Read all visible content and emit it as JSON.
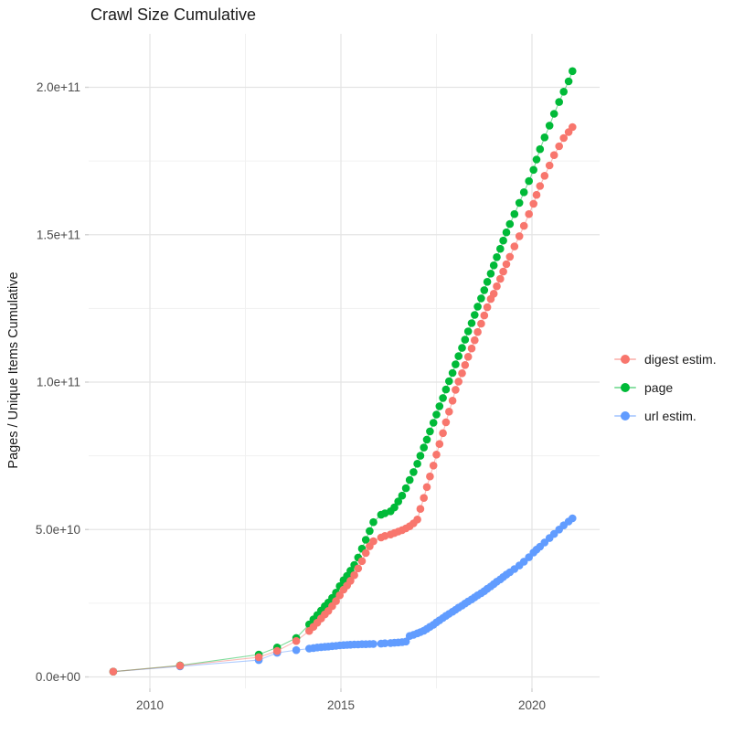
{
  "chart_data": {
    "type": "scatter",
    "title": "Crawl Size Cumulative",
    "xlabel": "",
    "ylabel": "Pages / Unique Items Cumulative",
    "value_unit": "billions (1e9) of pages / unique items",
    "axes": {
      "x": {
        "ticks": [
          {
            "value": 2010,
            "label": "2010"
          },
          {
            "value": 2015,
            "label": "2015"
          },
          {
            "value": 2020,
            "label": "2020"
          }
        ],
        "minor": [
          2012.5,
          2017.5
        ],
        "range": [
          2008.45,
          2021.75
        ]
      },
      "y": {
        "ticks": [
          {
            "value": 0,
            "label": "0.0e+00"
          },
          {
            "value": 50,
            "label": "5.0e+10"
          },
          {
            "value": 100,
            "label": "1.0e+11"
          },
          {
            "value": 150,
            "label": "1.5e+11"
          },
          {
            "value": 200,
            "label": "2.0e+11"
          }
        ],
        "minor": [
          25,
          75,
          125,
          175
        ],
        "range": [
          -4,
          218
        ]
      },
      "grid": "on"
    },
    "x": [
      2009.04,
      2010.79,
      2012.85,
      2013.33,
      2013.83,
      2014.17,
      2014.28,
      2014.38,
      2014.48,
      2014.58,
      2014.67,
      2014.77,
      2014.87,
      2014.97,
      2015.07,
      2015.16,
      2015.25,
      2015.35,
      2015.45,
      2015.55,
      2015.65,
      2015.75,
      2015.85,
      2016.05,
      2016.15,
      2016.3,
      2016.4,
      2016.5,
      2016.6,
      2016.7,
      2016.8,
      2016.9,
      2017.0,
      2017.08,
      2017.17,
      2017.25,
      2017.33,
      2017.42,
      2017.5,
      2017.58,
      2017.67,
      2017.75,
      2017.83,
      2017.92,
      2018.0,
      2018.08,
      2018.17,
      2018.25,
      2018.33,
      2018.42,
      2018.5,
      2018.58,
      2018.67,
      2018.75,
      2018.83,
      2018.92,
      2019.0,
      2019.08,
      2019.17,
      2019.25,
      2019.33,
      2019.42,
      2019.54,
      2019.67,
      2019.79,
      2019.92,
      2020.04,
      2020.12,
      2020.21,
      2020.33,
      2020.46,
      2020.58,
      2020.71,
      2020.83,
      2020.96,
      2021.06
    ],
    "series": [
      {
        "name": "digest estim.",
        "color": "#F8766D",
        "values": [
          1.8,
          3.8,
          6.7,
          8.8,
          12.2,
          15.6,
          17.0,
          18.4,
          19.8,
          21.2,
          22.4,
          24.0,
          25.7,
          27.7,
          29.6,
          31.0,
          32.6,
          34.5,
          36.8,
          39.3,
          42.0,
          44.3,
          46.0,
          47.3,
          47.8,
          48.3,
          48.8,
          49.3,
          49.8,
          50.4,
          51.1,
          52.1,
          53.4,
          57.0,
          60.7,
          64.4,
          68.0,
          71.7,
          75.4,
          79.0,
          82.7,
          86.4,
          90.0,
          93.7,
          97.4,
          100.2,
          103.0,
          105.8,
          108.6,
          111.4,
          114.2,
          117.0,
          119.8,
          122.6,
          125.4,
          128.2,
          130.0,
          132.5,
          135.0,
          137.5,
          140.0,
          142.5,
          146.0,
          149.5,
          153.0,
          157.0,
          160.5,
          163.5,
          166.5,
          170.0,
          173.5,
          177.0,
          180.0,
          182.8,
          184.8,
          186.5
        ]
      },
      {
        "name": "page",
        "color": "#00BA38",
        "values": [
          1.8,
          3.9,
          7.6,
          10.0,
          13.2,
          17.8,
          19.5,
          21.0,
          22.5,
          24.0,
          25.2,
          26.8,
          28.6,
          30.8,
          32.8,
          34.3,
          36.0,
          38.0,
          40.5,
          43.5,
          46.5,
          49.5,
          52.5,
          55.0,
          55.5,
          56.2,
          57.5,
          59.5,
          61.5,
          64.0,
          66.8,
          69.5,
          72.3,
          75.0,
          77.8,
          80.5,
          83.3,
          86.2,
          89.0,
          91.8,
          94.6,
          97.5,
          100.3,
          103.1,
          106.0,
          108.8,
          111.6,
          114.4,
          117.2,
          120.0,
          122.8,
          125.6,
          128.4,
          131.2,
          134.0,
          136.8,
          139.6,
          142.4,
          145.2,
          148.0,
          150.8,
          153.6,
          157.0,
          160.8,
          164.4,
          168.2,
          172.0,
          175.5,
          179.0,
          183.0,
          187.0,
          191.0,
          195.0,
          198.5,
          202.0,
          205.5
        ]
      },
      {
        "name": "url estim.",
        "color": "#619CFF",
        "values": [
          1.8,
          3.6,
          5.7,
          8.2,
          9.1,
          9.6,
          9.8,
          10.0,
          10.1,
          10.2,
          10.3,
          10.45,
          10.55,
          10.7,
          10.8,
          10.85,
          10.9,
          11.0,
          11.0,
          11.1,
          11.1,
          11.15,
          11.2,
          11.3,
          11.4,
          11.5,
          11.6,
          11.7,
          11.8,
          12.0,
          13.9,
          14.3,
          14.8,
          15.2,
          15.7,
          16.3,
          17.0,
          17.7,
          18.5,
          19.2,
          20.0,
          20.7,
          21.4,
          22.1,
          22.8,
          23.5,
          24.2,
          24.9,
          25.6,
          26.3,
          27.0,
          27.7,
          28.4,
          29.1,
          29.9,
          30.7,
          31.5,
          32.3,
          33.1,
          33.9,
          34.7,
          35.5,
          36.6,
          37.8,
          39.1,
          40.6,
          42.2,
          43.2,
          44.2,
          45.6,
          47.1,
          48.5,
          50.0,
          51.4,
          52.7,
          53.8
        ]
      }
    ],
    "legend_position": "right"
  },
  "legend": {
    "items": [
      {
        "label": "digest estim.",
        "color": "#F8766D"
      },
      {
        "label": "page",
        "color": "#00BA38"
      },
      {
        "label": "url estim.",
        "color": "#619CFF"
      }
    ]
  }
}
